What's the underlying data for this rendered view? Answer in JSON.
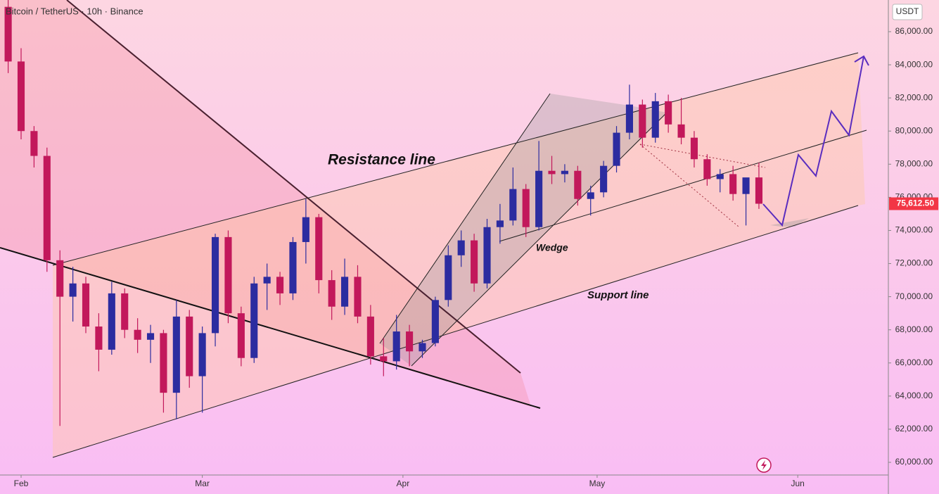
{
  "chart_data": {
    "type": "candlestick",
    "title": "Bitcoin / TetherUS · 10h · Binance",
    "currency": "USDT",
    "annotations": [
      "Resistance line",
      "Wedge",
      "Support line"
    ],
    "up_color": "#2c2ca0",
    "down_color": "#c2185b",
    "open": [
      87500,
      84200,
      80000,
      78500,
      72200,
      70000,
      70800,
      68200,
      66800,
      70200,
      68000,
      67400,
      67800,
      64200,
      68800,
      65200,
      67800,
      73600,
      69000,
      66300,
      70800,
      71200,
      70200,
      73300,
      74800,
      71000,
      69400,
      71200,
      68800,
      66400,
      66100,
      67900,
      66700,
      67200,
      69800,
      72500,
      73400,
      70800,
      74200,
      74600,
      76500,
      74200,
      77600,
      77400,
      77600,
      75900,
      76300,
      77900,
      79900,
      81600,
      79600,
      81800,
      80400,
      79600,
      78300,
      77100,
      77400,
      76200,
      77200
    ],
    "high": [
      88000,
      85000,
      80300,
      79000,
      72800,
      71800,
      71200,
      69000,
      70900,
      70500,
      68700,
      68300,
      68000,
      69800,
      69200,
      68200,
      73800,
      74000,
      69400,
      71200,
      72000,
      71500,
      73600,
      75900,
      75000,
      71600,
      72300,
      71900,
      69500,
      67500,
      68900,
      68300,
      67400,
      70000,
      73100,
      74000,
      73800,
      74700,
      75600,
      77800,
      76800,
      79400,
      78500,
      78000,
      77900,
      76700,
      78200,
      80300,
      82800,
      81900,
      82300,
      82200,
      82000,
      80000,
      78600,
      77700,
      77900,
      77000,
      78100
    ],
    "low": [
      83500,
      79500,
      77800,
      71500,
      62200,
      68500,
      67800,
      65500,
      66500,
      67500,
      66600,
      66000,
      63000,
      62600,
      64500,
      63000,
      67000,
      68400,
      65800,
      66000,
      69200,
      69500,
      69800,
      72000,
      70200,
      68600,
      68900,
      68400,
      65900,
      65200,
      65600,
      65800,
      66300,
      67000,
      69400,
      71800,
      70300,
      70500,
      73200,
      74300,
      73600,
      74000,
      76800,
      76900,
      75500,
      74900,
      76000,
      77500,
      79500,
      79000,
      79300,
      79900,
      79200,
      77800,
      76700,
      76300,
      75800,
      74300,
      75300
    ],
    "close": [
      84200,
      80000,
      78500,
      72200,
      70000,
      70800,
      68200,
      66800,
      70200,
      68000,
      67400,
      67800,
      64200,
      68800,
      65200,
      67800,
      73600,
      69000,
      66300,
      70800,
      71200,
      70200,
      73300,
      74800,
      71000,
      69400,
      71200,
      68800,
      66400,
      66100,
      67900,
      66700,
      67200,
      69800,
      72500,
      73400,
      70800,
      74200,
      74600,
      76500,
      74200,
      77600,
      77400,
      77600,
      75900,
      76300,
      77900,
      79900,
      81600,
      79600,
      81800,
      80400,
      79600,
      78300,
      77100,
      77400,
      76200,
      77200,
      75612.5
    ],
    "price_marker": {
      "value": 75612.5,
      "label": "75,612.50"
    },
    "marker_color": "#f23645",
    "xlim": [
      -0.63,
      68.0
    ],
    "xticks": [
      {
        "value": 1,
        "label": "Feb"
      },
      {
        "value": 15,
        "label": "Mar"
      },
      {
        "value": 30.5,
        "label": "Apr"
      },
      {
        "value": 45.5,
        "label": "May"
      },
      {
        "value": 61,
        "label": "Jun"
      }
    ],
    "ylim": [
      59235,
      87912
    ],
    "yticks": [
      {
        "value": 60000,
        "label": "60,000.00"
      },
      {
        "value": 62000,
        "label": "62,000.00"
      },
      {
        "value": 64000,
        "label": "64,000.00"
      },
      {
        "value": 66000,
        "label": "66,000.00"
      },
      {
        "value": 68000,
        "label": "68,000.00"
      },
      {
        "value": 70000,
        "label": "70,000.00"
      },
      {
        "value": 72000,
        "label": "72,000.00"
      },
      {
        "value": 74000,
        "label": "74,000.00"
      },
      {
        "value": 76000,
        "label": "76,000.00"
      },
      {
        "value": 78000,
        "label": "78,000.00"
      },
      {
        "value": 80000,
        "label": "80,000.00"
      },
      {
        "value": 82000,
        "label": "82,000.00"
      },
      {
        "value": 84000,
        "label": "84,000.00"
      },
      {
        "value": 86000,
        "label": "86,000.00"
      }
    ]
  }
}
